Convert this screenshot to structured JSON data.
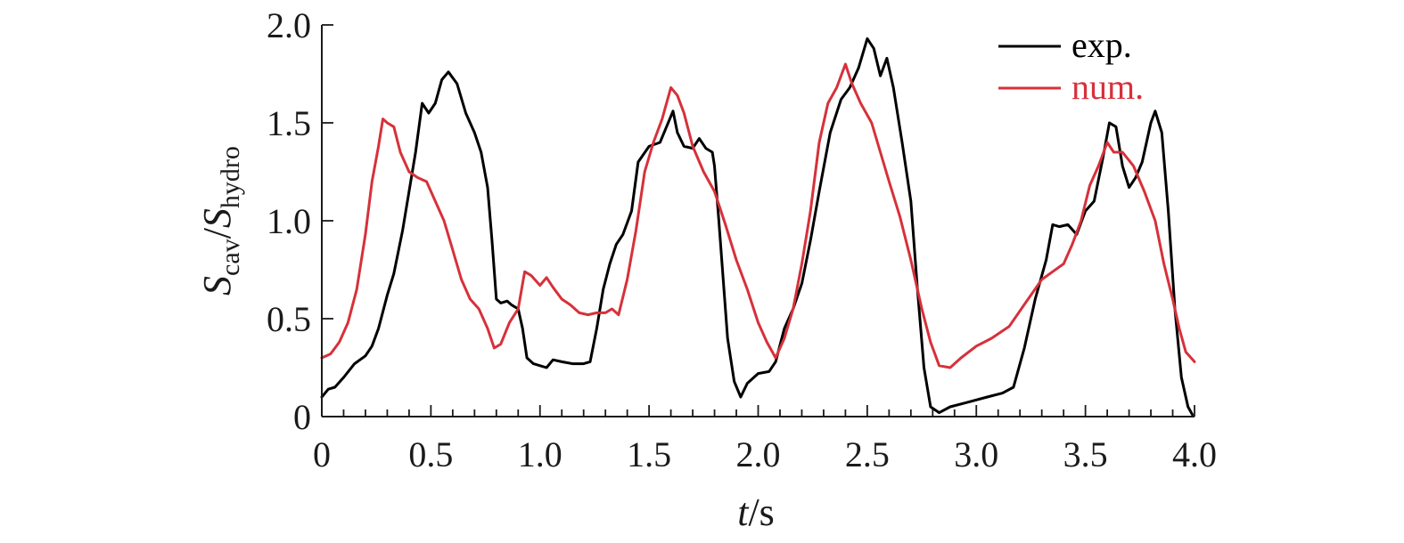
{
  "chart_data": {
    "type": "line",
    "xlabel": {
      "italic": "t",
      "rest": "/s"
    },
    "ylabel": {
      "main1": "S",
      "sub1": "cav",
      "sep": "/",
      "main2": "S",
      "sub2": "hydro"
    },
    "xlim": [
      0,
      4.0
    ],
    "ylim": [
      0,
      2.0
    ],
    "x_ticks": [
      0,
      0.5,
      1.0,
      1.5,
      2.0,
      2.5,
      3.0,
      3.5,
      4.0
    ],
    "x_tick_labels": [
      "0",
      "0.5",
      "1.0",
      "1.5",
      "2.0",
      "2.5",
      "3.0",
      "3.5",
      "4.0"
    ],
    "y_ticks": [
      0,
      0.5,
      1.0,
      1.5,
      2.0
    ],
    "y_tick_labels": [
      "0",
      "0.5",
      "1.0",
      "1.5",
      "2.0"
    ],
    "x_minor_step": 0.1,
    "grid": false,
    "legend_position": "top-right",
    "series": [
      {
        "name": "exp.",
        "color": "#000000",
        "points": [
          [
            0.0,
            0.1
          ],
          [
            0.03,
            0.14
          ],
          [
            0.06,
            0.15
          ],
          [
            0.1,
            0.2
          ],
          [
            0.15,
            0.27
          ],
          [
            0.2,
            0.31
          ],
          [
            0.23,
            0.36
          ],
          [
            0.26,
            0.45
          ],
          [
            0.3,
            0.62
          ],
          [
            0.33,
            0.73
          ],
          [
            0.37,
            0.95
          ],
          [
            0.4,
            1.15
          ],
          [
            0.43,
            1.35
          ],
          [
            0.46,
            1.6
          ],
          [
            0.49,
            1.55
          ],
          [
            0.52,
            1.6
          ],
          [
            0.55,
            1.72
          ],
          [
            0.58,
            1.76
          ],
          [
            0.62,
            1.7
          ],
          [
            0.66,
            1.55
          ],
          [
            0.7,
            1.45
          ],
          [
            0.73,
            1.35
          ],
          [
            0.76,
            1.17
          ],
          [
            0.78,
            0.9
          ],
          [
            0.8,
            0.6
          ],
          [
            0.82,
            0.58
          ],
          [
            0.85,
            0.59
          ],
          [
            0.87,
            0.57
          ],
          [
            0.9,
            0.55
          ],
          [
            0.92,
            0.45
          ],
          [
            0.94,
            0.3
          ],
          [
            0.97,
            0.27
          ],
          [
            1.0,
            0.26
          ],
          [
            1.03,
            0.25
          ],
          [
            1.06,
            0.29
          ],
          [
            1.1,
            0.28
          ],
          [
            1.15,
            0.27
          ],
          [
            1.2,
            0.27
          ],
          [
            1.23,
            0.28
          ],
          [
            1.26,
            0.45
          ],
          [
            1.29,
            0.65
          ],
          [
            1.32,
            0.78
          ],
          [
            1.35,
            0.88
          ],
          [
            1.38,
            0.93
          ],
          [
            1.42,
            1.05
          ],
          [
            1.45,
            1.3
          ],
          [
            1.5,
            1.38
          ],
          [
            1.55,
            1.4
          ],
          [
            1.58,
            1.48
          ],
          [
            1.61,
            1.56
          ],
          [
            1.63,
            1.45
          ],
          [
            1.66,
            1.38
          ],
          [
            1.7,
            1.37
          ],
          [
            1.73,
            1.42
          ],
          [
            1.76,
            1.37
          ],
          [
            1.79,
            1.35
          ],
          [
            1.8,
            1.28
          ],
          [
            1.82,
            1.0
          ],
          [
            1.84,
            0.7
          ],
          [
            1.86,
            0.4
          ],
          [
            1.89,
            0.18
          ],
          [
            1.92,
            0.1
          ],
          [
            1.95,
            0.17
          ],
          [
            2.0,
            0.22
          ],
          [
            2.05,
            0.23
          ],
          [
            2.08,
            0.28
          ],
          [
            2.12,
            0.45
          ],
          [
            2.16,
            0.55
          ],
          [
            2.2,
            0.68
          ],
          [
            2.24,
            0.9
          ],
          [
            2.28,
            1.15
          ],
          [
            2.33,
            1.45
          ],
          [
            2.38,
            1.62
          ],
          [
            2.42,
            1.68
          ],
          [
            2.46,
            1.78
          ],
          [
            2.5,
            1.93
          ],
          [
            2.53,
            1.88
          ],
          [
            2.56,
            1.74
          ],
          [
            2.59,
            1.83
          ],
          [
            2.62,
            1.68
          ],
          [
            2.66,
            1.4
          ],
          [
            2.7,
            1.1
          ],
          [
            2.73,
            0.65
          ],
          [
            2.76,
            0.25
          ],
          [
            2.79,
            0.05
          ],
          [
            2.83,
            0.02
          ],
          [
            2.88,
            0.05
          ],
          [
            2.95,
            0.07
          ],
          [
            3.05,
            0.1
          ],
          [
            3.12,
            0.12
          ],
          [
            3.17,
            0.15
          ],
          [
            3.22,
            0.35
          ],
          [
            3.27,
            0.6
          ],
          [
            3.32,
            0.8
          ],
          [
            3.35,
            0.98
          ],
          [
            3.38,
            0.97
          ],
          [
            3.42,
            0.98
          ],
          [
            3.46,
            0.93
          ],
          [
            3.5,
            1.05
          ],
          [
            3.54,
            1.1
          ],
          [
            3.58,
            1.32
          ],
          [
            3.61,
            1.5
          ],
          [
            3.64,
            1.48
          ],
          [
            3.67,
            1.28
          ],
          [
            3.7,
            1.17
          ],
          [
            3.73,
            1.22
          ],
          [
            3.76,
            1.3
          ],
          [
            3.8,
            1.5
          ],
          [
            3.82,
            1.56
          ],
          [
            3.85,
            1.45
          ],
          [
            3.88,
            1.05
          ],
          [
            3.91,
            0.55
          ],
          [
            3.94,
            0.2
          ],
          [
            3.97,
            0.05
          ],
          [
            3.99,
            0.01
          ]
        ]
      },
      {
        "name": "num.",
        "color": "#d6313a",
        "points": [
          [
            0.0,
            0.3
          ],
          [
            0.04,
            0.32
          ],
          [
            0.08,
            0.38
          ],
          [
            0.12,
            0.48
          ],
          [
            0.16,
            0.65
          ],
          [
            0.2,
            0.93
          ],
          [
            0.23,
            1.2
          ],
          [
            0.26,
            1.38
          ],
          [
            0.28,
            1.52
          ],
          [
            0.3,
            1.5
          ],
          [
            0.33,
            1.48
          ],
          [
            0.36,
            1.35
          ],
          [
            0.4,
            1.25
          ],
          [
            0.44,
            1.22
          ],
          [
            0.48,
            1.2
          ],
          [
            0.52,
            1.1
          ],
          [
            0.56,
            1.0
          ],
          [
            0.6,
            0.85
          ],
          [
            0.64,
            0.7
          ],
          [
            0.68,
            0.6
          ],
          [
            0.72,
            0.55
          ],
          [
            0.76,
            0.45
          ],
          [
            0.79,
            0.35
          ],
          [
            0.82,
            0.37
          ],
          [
            0.86,
            0.48
          ],
          [
            0.9,
            0.55
          ],
          [
            0.93,
            0.74
          ],
          [
            0.96,
            0.72
          ],
          [
            1.0,
            0.67
          ],
          [
            1.03,
            0.71
          ],
          [
            1.06,
            0.66
          ],
          [
            1.1,
            0.6
          ],
          [
            1.14,
            0.57
          ],
          [
            1.18,
            0.53
          ],
          [
            1.22,
            0.52
          ],
          [
            1.26,
            0.53
          ],
          [
            1.3,
            0.53
          ],
          [
            1.33,
            0.55
          ],
          [
            1.36,
            0.52
          ],
          [
            1.4,
            0.7
          ],
          [
            1.44,
            0.95
          ],
          [
            1.48,
            1.25
          ],
          [
            1.52,
            1.4
          ],
          [
            1.56,
            1.52
          ],
          [
            1.6,
            1.68
          ],
          [
            1.63,
            1.64
          ],
          [
            1.66,
            1.55
          ],
          [
            1.7,
            1.38
          ],
          [
            1.75,
            1.25
          ],
          [
            1.8,
            1.15
          ],
          [
            1.85,
            0.98
          ],
          [
            1.9,
            0.8
          ],
          [
            1.95,
            0.65
          ],
          [
            2.0,
            0.48
          ],
          [
            2.04,
            0.38
          ],
          [
            2.08,
            0.3
          ],
          [
            2.12,
            0.4
          ],
          [
            2.16,
            0.55
          ],
          [
            2.2,
            0.78
          ],
          [
            2.24,
            1.05
          ],
          [
            2.28,
            1.4
          ],
          [
            2.32,
            1.6
          ],
          [
            2.36,
            1.68
          ],
          [
            2.4,
            1.8
          ],
          [
            2.43,
            1.7
          ],
          [
            2.47,
            1.6
          ],
          [
            2.52,
            1.5
          ],
          [
            2.56,
            1.35
          ],
          [
            2.6,
            1.2
          ],
          [
            2.65,
            1.02
          ],
          [
            2.7,
            0.8
          ],
          [
            2.75,
            0.55
          ],
          [
            2.79,
            0.38
          ],
          [
            2.83,
            0.26
          ],
          [
            2.88,
            0.25
          ],
          [
            2.93,
            0.3
          ],
          [
            3.0,
            0.36
          ],
          [
            3.07,
            0.4
          ],
          [
            3.15,
            0.46
          ],
          [
            3.2,
            0.54
          ],
          [
            3.25,
            0.62
          ],
          [
            3.3,
            0.7
          ],
          [
            3.35,
            0.74
          ],
          [
            3.4,
            0.78
          ],
          [
            3.44,
            0.88
          ],
          [
            3.48,
            1.0
          ],
          [
            3.52,
            1.18
          ],
          [
            3.56,
            1.28
          ],
          [
            3.6,
            1.4
          ],
          [
            3.63,
            1.35
          ],
          [
            3.67,
            1.35
          ],
          [
            3.72,
            1.28
          ],
          [
            3.77,
            1.15
          ],
          [
            3.82,
            1.0
          ],
          [
            3.86,
            0.78
          ],
          [
            3.9,
            0.6
          ],
          [
            3.93,
            0.45
          ],
          [
            3.96,
            0.33
          ],
          [
            4.0,
            0.28
          ]
        ]
      }
    ]
  }
}
